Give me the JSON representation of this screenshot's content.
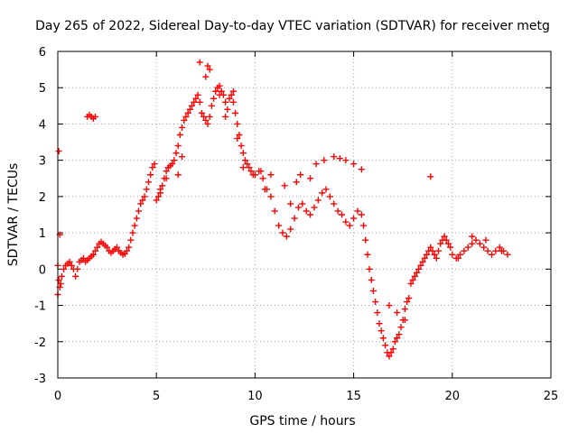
{
  "chart_data": {
    "type": "scatter",
    "title": "Day 265 of 2022, Sidereal Day-to-day VTEC variation (SDTVAR) for receiver metg",
    "xlabel": "GPS time / hours",
    "ylabel": "SDTVAR / TECUs",
    "xlim": [
      0,
      25
    ],
    "ylim": [
      -3,
      6
    ],
    "x_ticks": [
      "0",
      "5",
      "10",
      "15",
      "20",
      "25"
    ],
    "y_ticks": [
      "-3",
      "-2",
      "-1",
      "0",
      "1",
      "2",
      "3",
      "4",
      "5",
      "6"
    ],
    "grid": true,
    "marker": "+",
    "color": "#ff0000",
    "series": [
      {
        "name": "SDTVAR",
        "x": [
          0.0,
          0.05,
          0.1,
          0.15,
          0.2,
          0.3,
          0.4,
          0.5,
          0.6,
          0.7,
          0.8,
          0.9,
          1.0,
          1.1,
          1.2,
          1.3,
          1.4,
          1.5,
          1.6,
          1.7,
          1.8,
          1.9,
          2.0,
          2.1,
          2.2,
          2.3,
          2.4,
          2.5,
          2.6,
          2.7,
          2.8,
          2.9,
          3.0,
          3.1,
          3.2,
          3.3,
          3.4,
          3.5,
          3.6,
          3.7,
          3.8,
          3.9,
          4.0,
          4.1,
          4.2,
          4.3,
          4.4,
          4.5,
          4.6,
          4.7,
          4.8,
          4.9,
          5.0,
          5.1,
          5.2,
          5.3,
          5.4,
          5.5,
          5.6,
          5.7,
          5.8,
          5.9,
          6.0,
          6.1,
          6.2,
          6.3,
          6.4,
          6.5,
          6.6,
          6.7,
          6.8,
          6.9,
          7.0,
          7.1,
          7.2,
          7.3,
          7.4,
          7.5,
          7.6,
          7.7,
          7.8,
          7.9,
          8.0,
          8.1,
          8.2,
          8.3,
          8.4,
          8.5,
          8.6,
          8.7,
          8.8,
          8.9,
          9.0,
          9.1,
          9.2,
          9.3,
          9.4,
          9.5,
          9.6,
          9.7,
          9.8,
          9.9,
          10.0,
          10.2,
          10.4,
          10.6,
          10.8,
          11.0,
          11.2,
          11.4,
          11.6,
          11.8,
          12.0,
          12.2,
          12.4,
          12.6,
          12.8,
          13.0,
          13.2,
          13.4,
          13.6,
          13.8,
          14.0,
          14.2,
          14.4,
          14.6,
          14.8,
          15.0,
          15.2,
          15.4,
          15.5,
          15.6,
          15.7,
          15.8,
          15.9,
          16.0,
          16.1,
          16.2,
          16.3,
          16.4,
          16.5,
          16.6,
          16.7,
          16.8,
          16.9,
          17.0,
          17.1,
          17.2,
          17.3,
          17.4,
          17.5,
          17.6,
          17.7,
          17.8,
          17.9,
          18.0,
          18.1,
          18.2,
          18.3,
          18.4,
          18.5,
          18.6,
          18.7,
          18.8,
          18.9,
          19.0,
          19.1,
          19.2,
          19.3,
          19.4,
          19.5,
          19.6,
          19.7,
          19.8,
          19.9,
          20.0,
          20.2,
          20.4,
          20.6,
          20.8,
          21.0,
          21.2,
          21.4,
          21.6,
          21.8,
          22.0,
          22.2,
          22.4,
          22.6,
          22.8,
          0.05,
          0.1,
          0.0,
          1.5,
          1.6,
          1.7,
          1.8,
          1.9,
          5.2,
          5.5,
          6.1,
          6.3,
          7.2,
          7.5,
          7.6,
          7.7,
          8.2,
          8.5,
          8.9,
          9.1,
          9.4,
          10.3,
          10.5,
          10.8,
          11.5,
          11.8,
          12.1,
          12.3,
          12.8,
          13.1,
          13.5,
          14.0,
          14.3,
          14.6,
          15.0,
          15.4,
          16.8,
          17.2,
          17.6,
          18.9,
          20.3,
          21.0,
          21.7,
          22.5
        ],
        "y": [
          0.1,
          -0.3,
          -0.5,
          -0.4,
          -0.2,
          0.0,
          0.1,
          0.15,
          0.2,
          0.1,
          0.0,
          -0.2,
          0.0,
          0.2,
          0.25,
          0.3,
          0.2,
          0.25,
          0.3,
          0.35,
          0.4,
          0.5,
          0.6,
          0.7,
          0.75,
          0.7,
          0.65,
          0.6,
          0.5,
          0.45,
          0.5,
          0.55,
          0.6,
          0.5,
          0.45,
          0.4,
          0.42,
          0.5,
          0.6,
          0.8,
          1.0,
          1.2,
          1.4,
          1.6,
          1.8,
          1.9,
          2.0,
          2.2,
          2.4,
          2.6,
          2.8,
          2.9,
          1.9,
          2.0,
          2.1,
          2.3,
          2.5,
          2.7,
          2.8,
          2.85,
          2.9,
          3.0,
          3.2,
          3.4,
          3.7,
          3.9,
          4.1,
          4.2,
          4.3,
          4.4,
          4.5,
          4.6,
          4.7,
          4.8,
          4.6,
          4.3,
          4.2,
          4.1,
          4.0,
          4.2,
          4.5,
          4.7,
          4.9,
          5.0,
          5.05,
          4.9,
          4.8,
          4.6,
          4.4,
          4.7,
          4.8,
          4.6,
          4.3,
          4.0,
          3.7,
          3.4,
          3.2,
          3.0,
          2.9,
          2.8,
          2.7,
          2.6,
          2.6,
          2.7,
          2.5,
          2.2,
          2.0,
          1.6,
          1.2,
          1.0,
          0.9,
          1.1,
          1.4,
          1.7,
          1.8,
          1.6,
          1.5,
          1.7,
          1.9,
          2.1,
          2.2,
          2.0,
          1.8,
          1.6,
          1.5,
          1.3,
          1.2,
          1.4,
          1.6,
          1.5,
          1.2,
          0.8,
          0.4,
          0.0,
          -0.3,
          -0.6,
          -0.9,
          -1.2,
          -1.5,
          -1.7,
          -1.9,
          -2.1,
          -2.3,
          -2.4,
          -2.3,
          -2.2,
          -2.0,
          -1.9,
          -1.8,
          -1.6,
          -1.4,
          -1.1,
          -0.9,
          -0.8,
          -0.4,
          -0.3,
          -0.2,
          -0.1,
          0.0,
          0.1,
          0.2,
          0.3,
          0.4,
          0.5,
          0.6,
          0.5,
          0.4,
          0.3,
          0.5,
          0.7,
          0.8,
          0.9,
          0.8,
          0.7,
          0.6,
          0.4,
          0.3,
          0.4,
          0.5,
          0.6,
          0.7,
          0.8,
          0.7,
          0.6,
          0.5,
          0.4,
          0.5,
          0.6,
          0.5,
          0.4,
          3.25,
          0.95,
          -0.7,
          4.2,
          4.25,
          4.2,
          4.15,
          4.2,
          2.2,
          2.5,
          2.6,
          3.1,
          5.7,
          5.3,
          5.6,
          5.5,
          4.8,
          4.2,
          4.9,
          3.6,
          2.8,
          2.7,
          2.2,
          2.6,
          2.3,
          1.8,
          2.4,
          2.6,
          2.5,
          2.9,
          3.0,
          3.1,
          3.05,
          3.0,
          2.9,
          2.75,
          -1.0,
          -1.2,
          -1.4,
          2.55,
          0.3,
          0.9,
          0.8,
          0.5
        ]
      }
    ]
  }
}
